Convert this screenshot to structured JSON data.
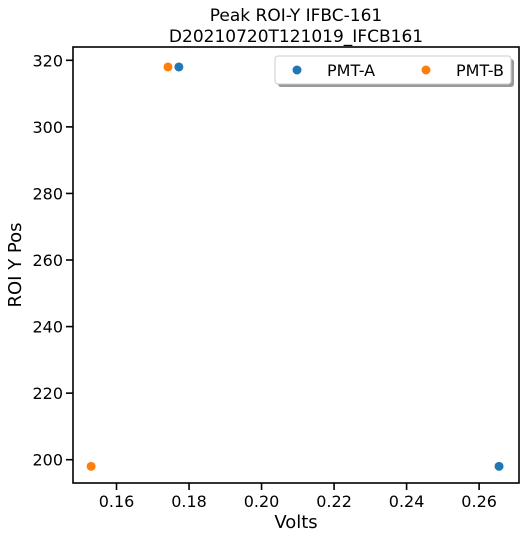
{
  "chart_data": {
    "type": "scatter",
    "title_lines": [
      "Peak ROI-Y IFBC-161",
      "D20210720T121019_IFCB161"
    ],
    "xlabel": "Volts",
    "ylabel": "ROI Y Pos",
    "xlim": [
      0.148,
      0.271
    ],
    "ylim": [
      193,
      324
    ],
    "xticks": [
      "0.16",
      "0.18",
      "0.20",
      "0.22",
      "0.24",
      "0.26"
    ],
    "yticks": [
      "200",
      "220",
      "240",
      "260",
      "280",
      "300",
      "320"
    ],
    "grid": false,
    "legend_position": "top-right",
    "series": [
      {
        "name": "PMT-A",
        "color": "#1f77b4",
        "points": [
          {
            "x": 0.1772,
            "y": 318
          },
          {
            "x": 0.2655,
            "y": 198
          }
        ]
      },
      {
        "name": "PMT-B",
        "color": "#ff7f0e",
        "points": [
          {
            "x": 0.1742,
            "y": 318
          },
          {
            "x": 0.153,
            "y": 198
          }
        ]
      }
    ]
  }
}
